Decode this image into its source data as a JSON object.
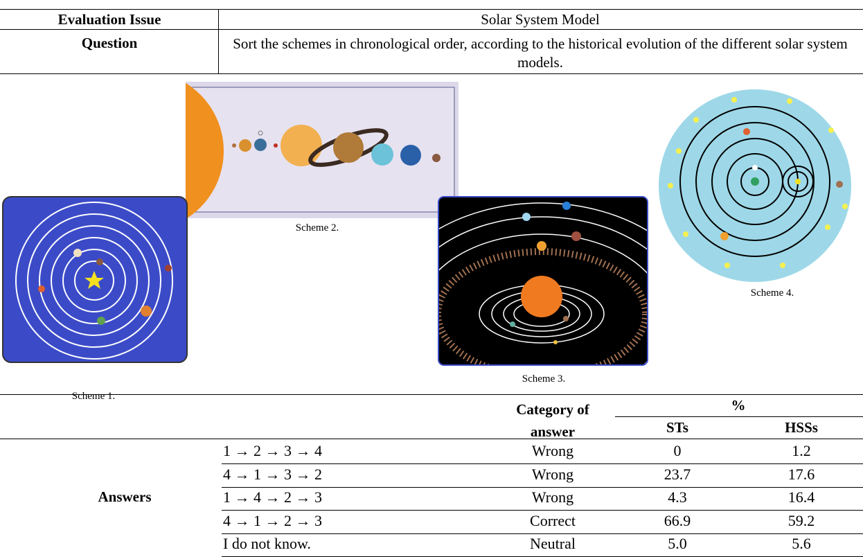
{
  "header": {
    "rows": [
      [
        "Evaluation Issue",
        "Solar System Model"
      ],
      [
        "Question",
        "Sort the schemes in chronological order, according to the historical evolution of the different solar system models."
      ]
    ]
  },
  "schemes": [
    {
      "caption": "Scheme 1."
    },
    {
      "caption": "Scheme 2."
    },
    {
      "caption": "Scheme 3."
    },
    {
      "caption": "Scheme 4."
    }
  ],
  "results": {
    "columns": {
      "category": "Category of answer",
      "percent": "%",
      "sts": "STs",
      "hss": "HSSs"
    },
    "row_label": "Answers",
    "rows": [
      [
        "1 → 2 → 3 → 4",
        "Wrong",
        "0",
        "1.2"
      ],
      [
        "4 → 1 → 3 → 2",
        "Wrong",
        "23.7",
        "17.6"
      ],
      [
        "1 → 4 → 2 → 3",
        "Wrong",
        "4.3",
        "16.4"
      ],
      [
        "4 → 1 → 2 → 3",
        "Correct",
        "66.9",
        "59.2"
      ],
      [
        "I do not know.",
        "Neutral",
        "5.0",
        "5.6"
      ]
    ]
  }
}
